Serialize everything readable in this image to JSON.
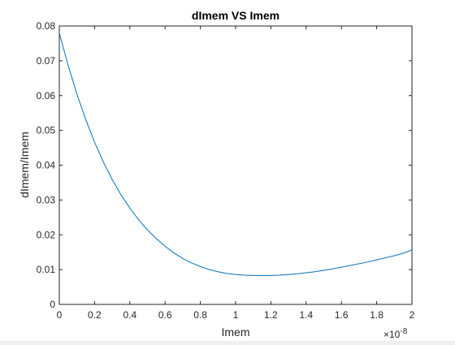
{
  "chart_data": {
    "type": "line",
    "title": "dImem VS Imem",
    "xlabel": "Imem",
    "ylabel": "dImem/Imem",
    "x_exponent_label": "×10",
    "x_exponent_power": "-8",
    "x_scale": 1e-08,
    "xlim": [
      0,
      2
    ],
    "ylim": [
      0,
      0.08
    ],
    "xticks": [
      "0",
      "0.2",
      "0.4",
      "0.6",
      "0.8",
      "1",
      "1.2",
      "1.4",
      "1.6",
      "1.8",
      "2"
    ],
    "yticks": [
      "0",
      "0.01",
      "0.02",
      "0.03",
      "0.04",
      "0.05",
      "0.06",
      "0.07",
      "0.08"
    ],
    "grid": false,
    "series": [
      {
        "color": "#0072BD",
        "x": [
          0,
          0.05,
          0.1,
          0.15,
          0.2,
          0.25,
          0.3,
          0.35,
          0.4,
          0.45,
          0.5,
          0.55,
          0.6,
          0.65,
          0.7,
          0.75,
          0.8,
          0.85,
          0.9,
          0.95,
          1.0,
          1.05,
          1.1,
          1.15,
          1.2,
          1.25,
          1.3,
          1.35,
          1.4,
          1.45,
          1.5,
          1.55,
          1.6,
          1.65,
          1.7,
          1.75,
          1.8,
          1.85,
          1.9,
          1.95,
          2.0
        ],
        "y": [
          0.078,
          0.0687,
          0.0604,
          0.0531,
          0.0466,
          0.0409,
          0.0359,
          0.0315,
          0.0277,
          0.0243,
          0.0214,
          0.0189,
          0.0167,
          0.0148,
          0.0132,
          0.0119,
          0.0109,
          0.01,
          0.0094,
          0.0089,
          0.0086,
          0.0084,
          0.0083,
          0.0083,
          0.0083,
          0.0084,
          0.0086,
          0.0088,
          0.0091,
          0.0094,
          0.0098,
          0.0102,
          0.0107,
          0.0112,
          0.0117,
          0.0122,
          0.0128,
          0.0134,
          0.014,
          0.0147,
          0.0157
        ]
      }
    ]
  }
}
